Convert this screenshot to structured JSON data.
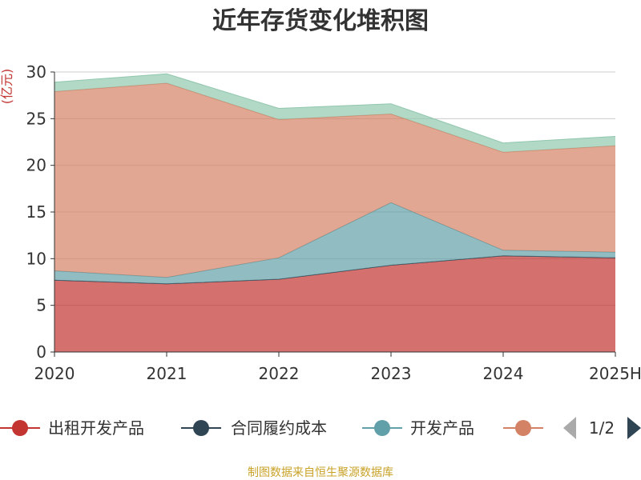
{
  "colors": {
    "grid": "#cccccc",
    "axis": "#333333",
    "text": "#333333",
    "unit": "#c23531",
    "source": "#c9a227",
    "pager_active": "#2f4554",
    "pager_inactive": "#aaaaaa"
  },
  "pager": {
    "text": "1/2",
    "prev_icon": "triangle-left-icon",
    "next_icon": "triangle-right-icon"
  },
  "footer": {
    "source": "制图数据来自恒生聚源数据库"
  },
  "chart_data": {
    "type": "area",
    "title": "近年存货变化堆积图",
    "ylabel": "(亿元)",
    "stacked": true,
    "grid": true,
    "ylim": [
      0,
      30
    ],
    "yticks": [
      0,
      5,
      10,
      15,
      20,
      25,
      30
    ],
    "categories": [
      "2020",
      "2021",
      "2022",
      "2023",
      "2024",
      "2025H"
    ],
    "legend_position": "bottom",
    "series": [
      {
        "name": "出租开发产品",
        "color": "#c23531",
        "values": [
          7.7,
          7.3,
          7.8,
          9.3,
          10.3,
          10.1
        ]
      },
      {
        "name": "合同履约成本",
        "color": "#2f4554",
        "values": [
          0.0,
          0.0,
          0.0,
          0.0,
          0.0,
          0.0
        ]
      },
      {
        "name": "开发产品",
        "color": "#61a0a8",
        "values": [
          1.0,
          0.7,
          2.3,
          6.7,
          0.6,
          0.6
        ]
      },
      {
        "name": "",
        "color": "#d48265",
        "values": [
          19.2,
          20.8,
          14.8,
          9.5,
          10.5,
          11.4
        ]
      },
      {
        "name": "",
        "color": "#91c7ae",
        "values": [
          1.0,
          1.0,
          1.2,
          1.1,
          1.0,
          1.0
        ]
      }
    ]
  }
}
